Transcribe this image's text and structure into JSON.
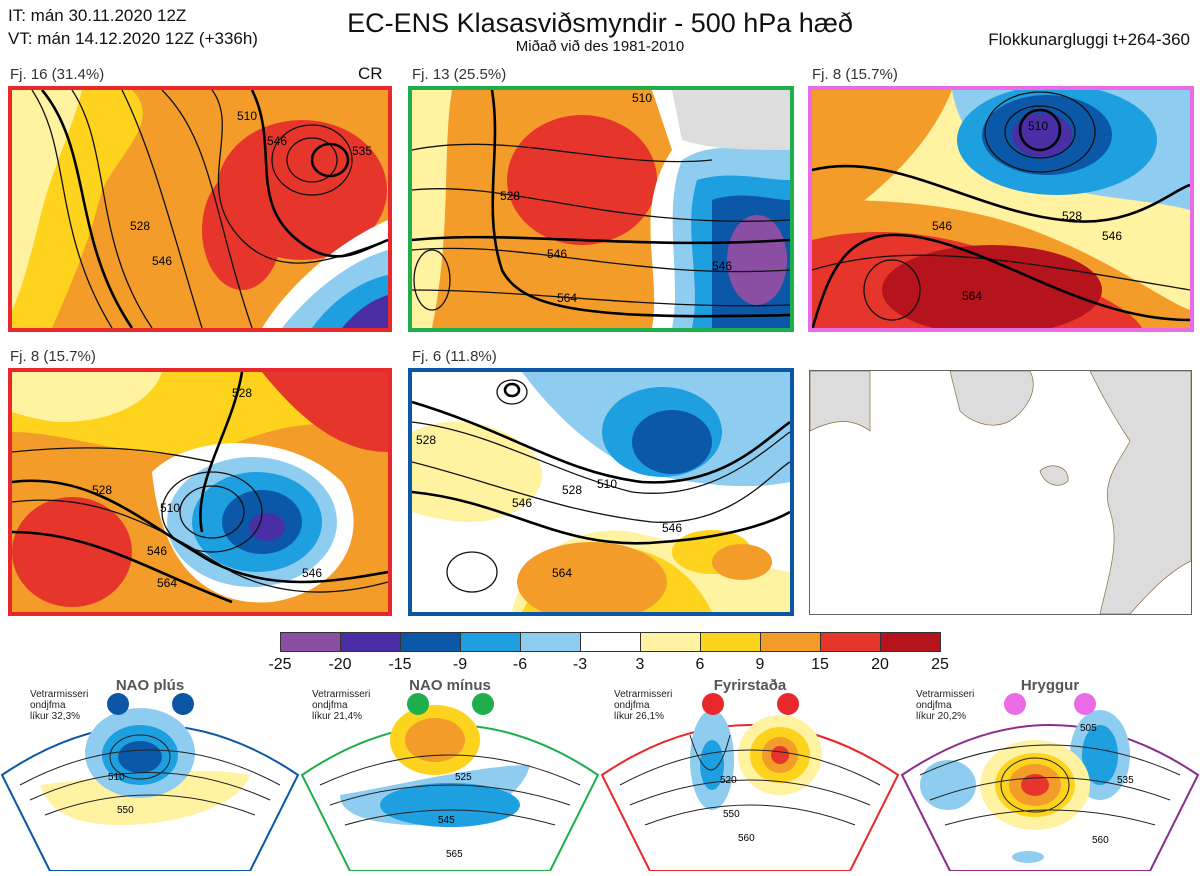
{
  "header": {
    "it_line": "IT: mán 30.11.2020 12Z",
    "vt_line": "VT: mán 14.12.2020 12Z  (+336h)",
    "title": "EC-ENS Klasasviðsmyndir - 500 hPa hæð",
    "subtitle": "Miðað við des 1981-2010",
    "window": "Flokkunargluggi t+264-360"
  },
  "panels": [
    {
      "label": "Fj. 16 (31.4%)",
      "border": "#e8282b",
      "extra": "CR",
      "contours": [
        "510",
        "528",
        "546",
        "546",
        "535"
      ]
    },
    {
      "label": "Fj. 13 (25.5%)",
      "border": "#1fae4b",
      "extra": "",
      "contours": [
        "510",
        "528",
        "546",
        "546",
        "564"
      ]
    },
    {
      "label": "Fj. 8 (15.7%)",
      "border": "#e96be6",
      "extra": "",
      "contours": [
        "510",
        "528",
        "546",
        "564",
        "546"
      ]
    },
    {
      "label": "Fj. 8 (15.7%)",
      "border": "#e8282b",
      "extra": "",
      "contours": [
        "528",
        "510",
        "528",
        "546",
        "564",
        "546"
      ]
    },
    {
      "label": "Fj. 6 (11.8%)",
      "border": "#0b57a4",
      "extra": "",
      "contours": [
        "528",
        "510",
        "528",
        "546",
        "546",
        "564"
      ]
    }
  ],
  "colorbar": {
    "colors": [
      "#8a4fa3",
      "#4a2ea6",
      "#0b57a8",
      "#1e9fe0",
      "#8fcdf0",
      "#ffffff",
      "#fff2a0",
      "#fdd31e",
      "#f39c2a",
      "#e6362c",
      "#b5141c"
    ],
    "ticks": [
      "-25",
      "-20",
      "-15",
      "-9",
      "-6",
      "-3",
      "3",
      "6",
      "9",
      "15",
      "20",
      "25"
    ]
  },
  "regimes": [
    {
      "name": "NAO plús",
      "color": "#0b57a4",
      "note": [
        "Vetrarmisseri",
        "ondjfma",
        "líkur 32,3%"
      ],
      "contours": [
        "510",
        "550"
      ]
    },
    {
      "name": "NAO mínus",
      "color": "#1fae4b",
      "note": [
        "Vetrarmisseri",
        "ondjfma",
        "líkur 21,4%"
      ],
      "contours": [
        "525",
        "545",
        "565"
      ]
    },
    {
      "name": "Fyrirstaða",
      "color": "#e8282b",
      "note": [
        "Vetrarmisseri",
        "ondjfma",
        "líkur 26,1%"
      ],
      "contours": [
        "520",
        "550",
        "560"
      ]
    },
    {
      "name": "Hryggur",
      "color": "#e96be6",
      "note": [
        "Vetrarmisseri",
        "ondjfma",
        "líkur 20,2%"
      ],
      "contours": [
        "505",
        "535",
        "560"
      ]
    }
  ]
}
